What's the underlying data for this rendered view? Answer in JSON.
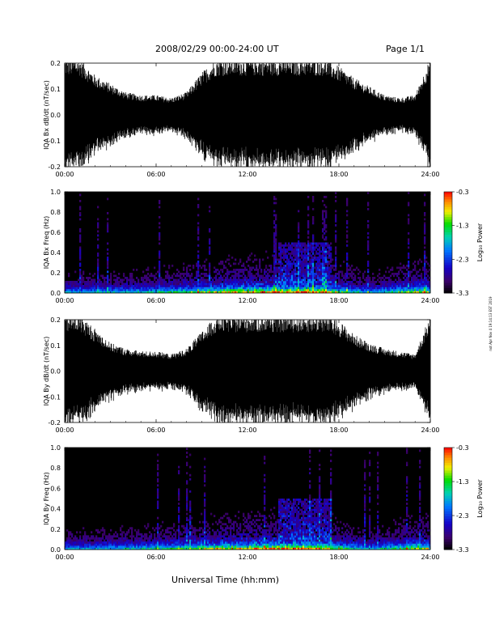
{
  "header": {
    "title": "2008/02/29  00:00-24:00 UT",
    "page": "Page 1/1"
  },
  "xlabel": "Universal Time (hh:mm)",
  "side_note": "not Apr Nov 4 19:14:13 EST 2019",
  "chart_data": [
    {
      "type": "line",
      "ylabel": "IQA Bx dB/dt (nT/sec)",
      "xlim": [
        0,
        24
      ],
      "ylim": [
        -0.2,
        0.2
      ],
      "x_ticks": [
        "00:00",
        "06:00",
        "12:00",
        "18:00",
        "24:00"
      ],
      "y_ticks": [
        "-0.2",
        "-0.1",
        "0.0",
        "0.1",
        "0.2"
      ],
      "envelope_hours": [
        0,
        1,
        2,
        3,
        4,
        5,
        6,
        7,
        8,
        9,
        10,
        11,
        12,
        13,
        14,
        15,
        16,
        17,
        18,
        19,
        20,
        21,
        22,
        23,
        24
      ],
      "envelope_nT_per_s": [
        0.2,
        0.2,
        0.14,
        0.11,
        0.08,
        0.07,
        0.07,
        0.06,
        0.08,
        0.15,
        0.2,
        0.2,
        0.2,
        0.2,
        0.2,
        0.2,
        0.2,
        0.2,
        0.17,
        0.13,
        0.1,
        0.07,
        0.06,
        0.07,
        0.2
      ],
      "color": "#000000"
    },
    {
      "type": "heatmap",
      "ylabel": "IQA Bx Freq (Hz)",
      "xlim": [
        0,
        24
      ],
      "ylim": [
        0,
        1
      ],
      "x_ticks": [
        "00:00",
        "06:00",
        "12:00",
        "18:00",
        "24:00"
      ],
      "y_ticks": [
        "0.0",
        "0.2",
        "0.4",
        "0.6",
        "0.8",
        "1.0"
      ],
      "colorbar": {
        "label": "Log₁₀ Power",
        "range": [
          -3.3,
          -0.3
        ],
        "ticks": [
          "-0.3",
          "-1.3",
          "-2.3",
          "-3.3"
        ]
      }
    },
    {
      "type": "line",
      "ylabel": "IQA By dB/dt (nT/sec)",
      "xlim": [
        0,
        24
      ],
      "ylim": [
        -0.2,
        0.2
      ],
      "x_ticks": [
        "00:00",
        "06:00",
        "12:00",
        "18:00",
        "24:00"
      ],
      "y_ticks": [
        "-0.2",
        "-0.1",
        "0.0",
        "0.1",
        "0.2"
      ],
      "envelope_hours": [
        0,
        1,
        2,
        3,
        4,
        5,
        6,
        7,
        8,
        9,
        10,
        11,
        12,
        13,
        14,
        15,
        16,
        17,
        18,
        19,
        20,
        21,
        22,
        23,
        24
      ],
      "envelope_nT_per_s": [
        0.2,
        0.2,
        0.15,
        0.1,
        0.08,
        0.07,
        0.07,
        0.06,
        0.08,
        0.14,
        0.2,
        0.2,
        0.2,
        0.2,
        0.2,
        0.2,
        0.2,
        0.2,
        0.18,
        0.13,
        0.1,
        0.08,
        0.07,
        0.06,
        0.2
      ],
      "color": "#000000"
    },
    {
      "type": "heatmap",
      "ylabel": "IQA By Freq (Hz)",
      "xlim": [
        0,
        24
      ],
      "ylim": [
        0,
        1
      ],
      "x_ticks": [
        "00:00",
        "06:00",
        "12:00",
        "18:00",
        "24:00"
      ],
      "y_ticks": [
        "0.0",
        "0.2",
        "0.4",
        "0.6",
        "0.8",
        "1.0"
      ],
      "colorbar": {
        "label": "Log₁₀ Power",
        "range": [
          -3.3,
          -0.3
        ],
        "ticks": [
          "-0.3",
          "-1.3",
          "-2.3",
          "-3.3"
        ]
      }
    }
  ]
}
